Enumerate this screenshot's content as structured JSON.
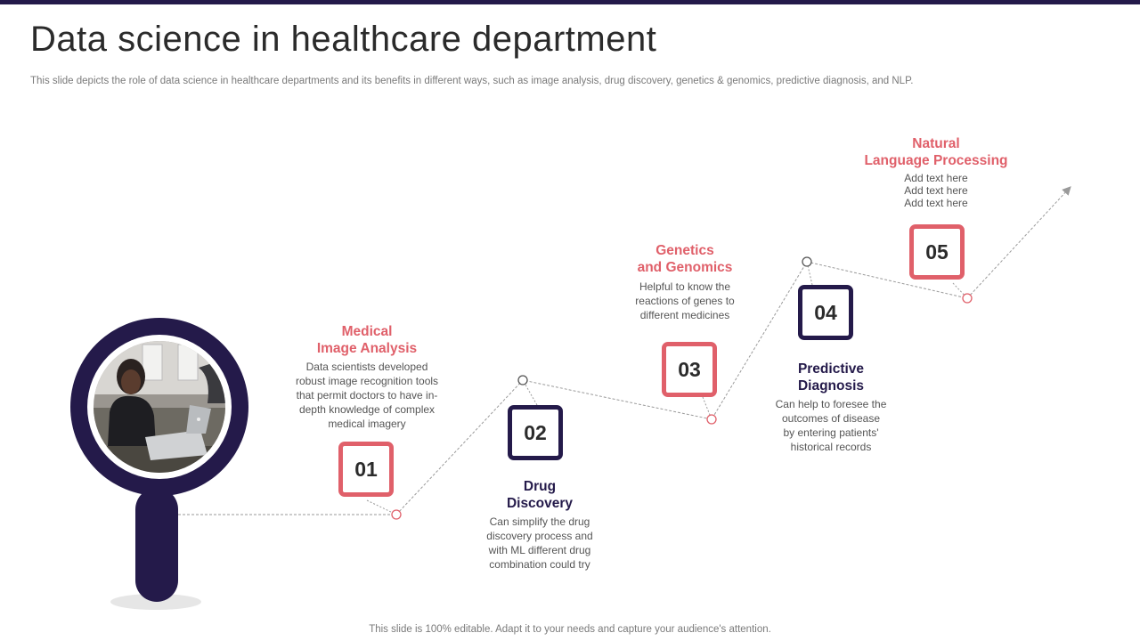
{
  "header": {
    "title": "Data science in healthcare department",
    "subtitle": "This slide depicts the role of data science in healthcare departments and its benefits in different ways, such as image analysis, drug discovery, genetics & genomics, predictive diagnosis, and NLP."
  },
  "steps": [
    {
      "number": "01",
      "title_line1": "Medical",
      "title_line2": "Image Analysis",
      "desc_lines": [
        "Data scientists developed",
        "robust image recognition tools",
        "that permit doctors to have in-",
        "depth knowledge of complex",
        "medical imagery"
      ]
    },
    {
      "number": "02",
      "title_line1": "Drug",
      "title_line2": "Discovery",
      "desc_lines": [
        "Can simplify the drug",
        "discovery process and",
        "with ML different drug",
        "combination could try"
      ]
    },
    {
      "number": "03",
      "title_line1": "Genetics",
      "title_line2": "and Genomics",
      "desc_lines": [
        "Helpful to know the",
        "reactions of genes to",
        "different medicines"
      ]
    },
    {
      "number": "04",
      "title_line1": "Predictive",
      "title_line2": "Diagnosis",
      "desc_lines": [
        "Can help to foresee the",
        "outcomes of disease",
        "by entering patients'",
        "historical records"
      ]
    },
    {
      "number": "05",
      "title_line1": "Natural",
      "title_line2": "Language Processing",
      "desc_lines": [
        "Add text here",
        "Add text here",
        "Add text here"
      ]
    }
  ],
  "colors": {
    "accent_red": "#e0606a",
    "accent_navy": "#241a4a",
    "connector": "#9a9a9a"
  },
  "footer": {
    "text": "This slide is 100% editable. Adapt it to your needs and capture your audience's attention."
  }
}
